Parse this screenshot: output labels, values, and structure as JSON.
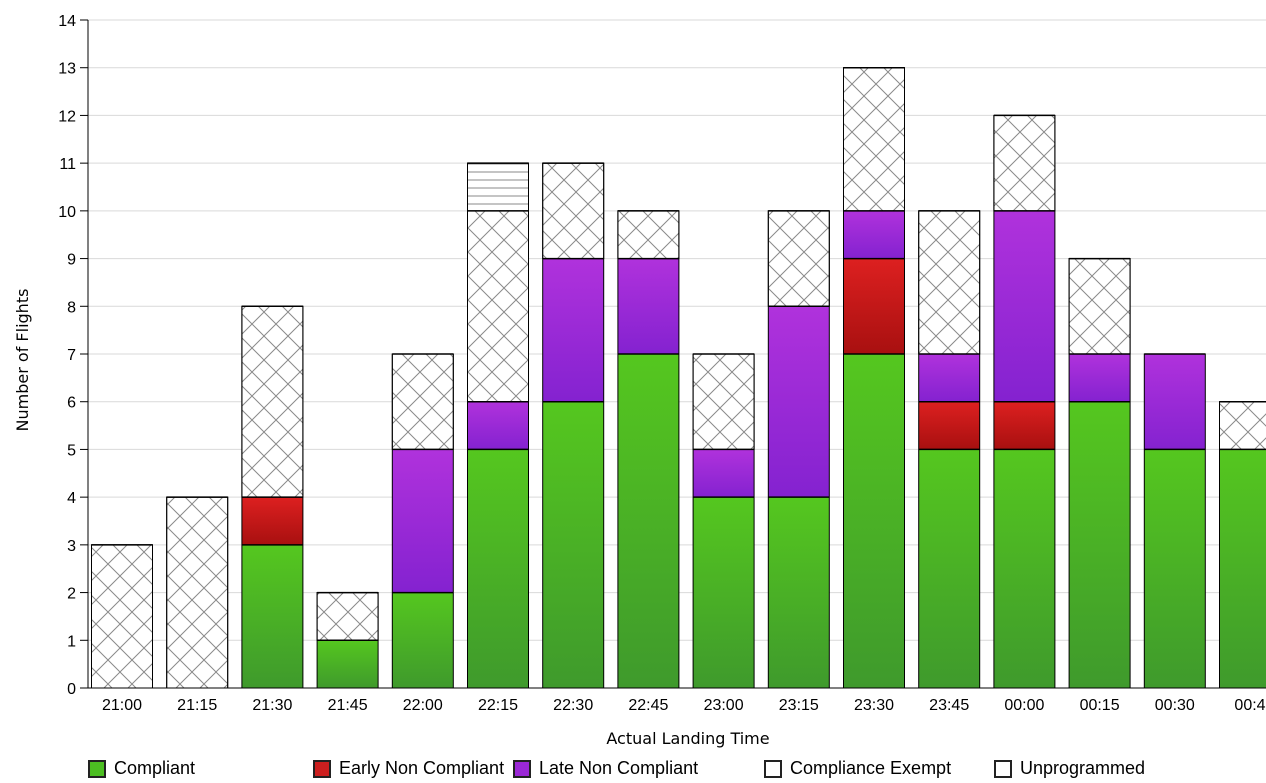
{
  "chart_data": {
    "type": "bar",
    "stacked": true,
    "xlabel": "Actual Landing Time",
    "ylabel": "Number of Flights",
    "ylim": [
      0,
      14
    ],
    "yticks": [
      0,
      1,
      2,
      3,
      4,
      5,
      6,
      7,
      8,
      9,
      10,
      11,
      12,
      13,
      14
    ],
    "grid": true,
    "legend_position": "bottom",
    "categories": [
      "21:00",
      "21:15",
      "21:30",
      "21:45",
      "22:00",
      "22:15",
      "22:30",
      "22:45",
      "23:00",
      "23:15",
      "23:30",
      "23:45",
      "00:00",
      "00:15",
      "00:30",
      "00:4"
    ],
    "series": [
      {
        "name": "Compliant",
        "color": "#4cbf22",
        "pattern": "solid",
        "values": [
          0,
          0,
          3,
          1,
          2,
          5,
          6,
          7,
          4,
          4,
          7,
          5,
          5,
          6,
          5,
          5
        ]
      },
      {
        "name": "Early Non Compliant",
        "color": "#cc1f1f",
        "pattern": "solid",
        "values": [
          0,
          0,
          1,
          0,
          0,
          0,
          0,
          0,
          0,
          0,
          2,
          1,
          1,
          0,
          0,
          0
        ]
      },
      {
        "name": "Late Non Compliant",
        "color": "#9b28d6",
        "pattern": "solid",
        "values": [
          0,
          0,
          0,
          0,
          3,
          1,
          3,
          2,
          1,
          4,
          1,
          1,
          4,
          1,
          2,
          0
        ]
      },
      {
        "name": "Compliance Exempt",
        "color": "#ffffff",
        "pattern": "crosshatch",
        "values": [
          3,
          4,
          4,
          1,
          2,
          4,
          2,
          1,
          2,
          2,
          3,
          3,
          2,
          2,
          0,
          1
        ]
      },
      {
        "name": "Unprogrammed",
        "color": "#ffffff",
        "pattern": "horizontal-lines",
        "values": [
          0,
          0,
          0,
          0,
          0,
          1,
          0,
          0,
          0,
          0,
          0,
          0,
          0,
          0,
          0,
          0
        ]
      }
    ]
  }
}
